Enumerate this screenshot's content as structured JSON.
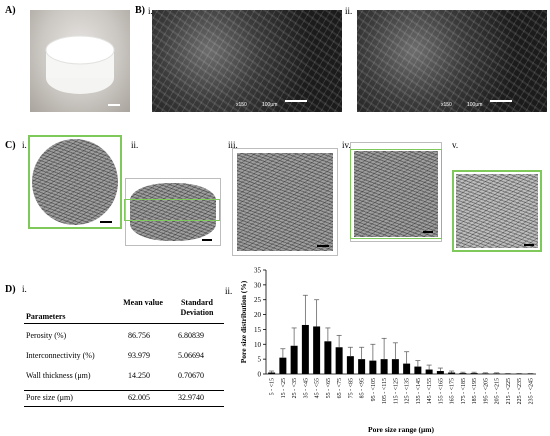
{
  "panels": {
    "A": {
      "label": "A)"
    },
    "B": {
      "label": "B)",
      "sub": [
        "i.",
        "ii."
      ],
      "sem_text": [
        "x150",
        "100μm",
        "x150",
        "100μm"
      ]
    },
    "C": {
      "label": "C)",
      "sub": [
        "i.",
        "ii.",
        "iii.",
        "iv.",
        "v."
      ]
    },
    "D": {
      "label": "D)",
      "sub": [
        "i.",
        "ii."
      ]
    }
  },
  "table": {
    "headers": [
      "Parameters",
      "Mean value",
      "Standard Deviation"
    ],
    "rows": [
      [
        "Perosity (%)",
        "86.756",
        "6.80839"
      ],
      [
        "Interconnectivity (%)",
        "93.979",
        "5.06694"
      ],
      [
        "Wall thickness (μm)",
        "14.250",
        "0.70670"
      ],
      [
        "Pore size (μm)",
        "62.005",
        "32.9740"
      ]
    ]
  },
  "colors": {
    "accent_green": "#7fc95b",
    "bar": "#000000"
  },
  "chart_data": {
    "type": "bar",
    "xlabel": "Pore size range (μm)",
    "ylabel": "Pore size distribution (%)",
    "ylim": [
      0,
      35
    ],
    "yticks": [
      0,
      5,
      10,
      15,
      20,
      25,
      30,
      35
    ],
    "categories": [
      "5 - <15",
      "15 - <25",
      "25 - <35",
      "35 - <45",
      "45 - <55",
      "55 - <65",
      "65 - <75",
      "75 - <85",
      "85 - <95",
      "95 - <105",
      "105 - <115",
      "115 - <125",
      "125 - <135",
      "135 - <145",
      "145 - <155",
      "155 - <165",
      "165 - <175",
      "175 - <185",
      "185 - <195",
      "195 - <205",
      "205 - <215",
      "215 - <225",
      "225 - <235",
      "235 - <245"
    ],
    "values": [
      0.5,
      5.5,
      9.5,
      16.5,
      16.0,
      11.0,
      9.0,
      6.0,
      5.0,
      4.5,
      5.0,
      5.0,
      3.5,
      2.5,
      1.5,
      1.0,
      0.5,
      0.3,
      0.3,
      0.2,
      0.2,
      0.1,
      0.1,
      0.1
    ],
    "errors": [
      0.5,
      3.0,
      6.0,
      10.0,
      9.0,
      4.5,
      4.0,
      3.0,
      4.0,
      5.5,
      7.0,
      5.5,
      4.0,
      2.0,
      1.5,
      1.0,
      0.5,
      0.3,
      0.3,
      0.2,
      0.2,
      0.1,
      0.1,
      0.1
    ],
    "grid": false,
    "legend": "none"
  }
}
